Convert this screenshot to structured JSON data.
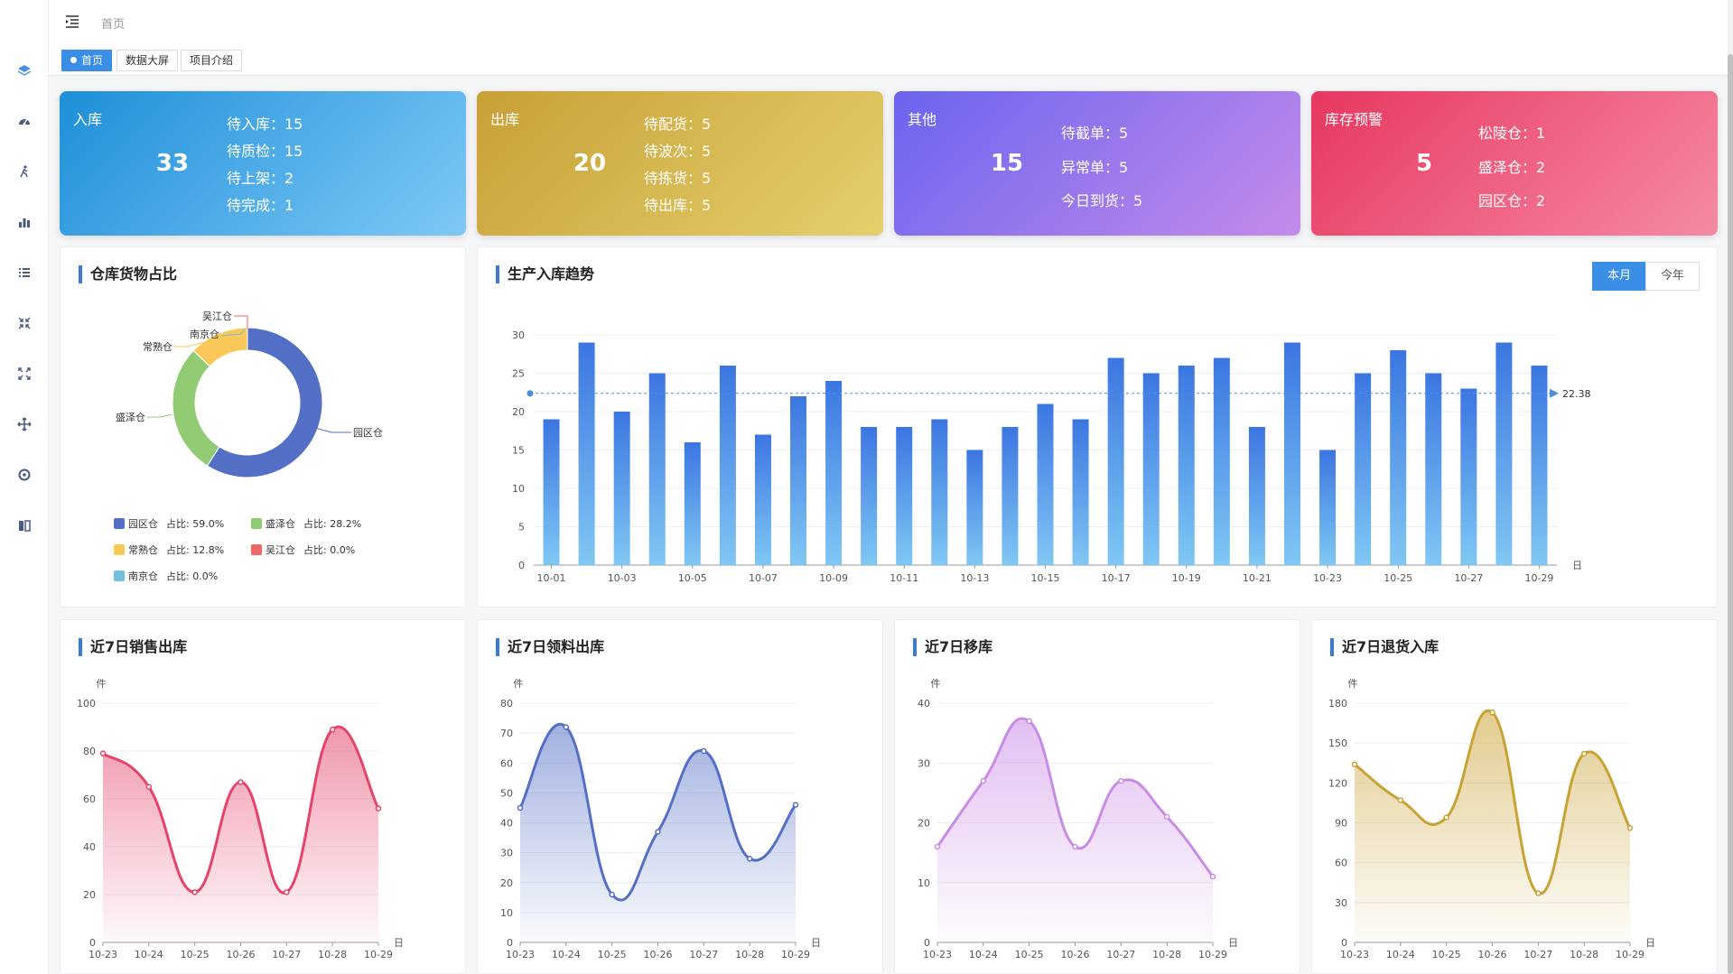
{
  "header": {
    "breadcrumb": "首页"
  },
  "tags": [
    {
      "label": "首页",
      "active": true
    },
    {
      "label": "数据大屏",
      "active": false
    },
    {
      "label": "项目介绍",
      "active": false
    }
  ],
  "sidebar": {
    "icons": [
      "layers-icon",
      "dashboard-icon",
      "person-walking-icon",
      "bar-chart-icon",
      "list-icon",
      "compress-icon",
      "expand-icon",
      "move-icon",
      "target-icon",
      "book-icon"
    ]
  },
  "cards": {
    "inbound": {
      "title": "入库",
      "total": "33",
      "items": [
        "待入库：15",
        "待质检：15",
        "待上架：2",
        "待完成：1"
      ]
    },
    "outbound": {
      "title": "出库",
      "total": "20",
      "items": [
        "待配货：5",
        "待波次：5",
        "待拣货：5",
        "待出库：5"
      ]
    },
    "other": {
      "title": "其他",
      "total": "15",
      "items": [
        "待截单：5",
        "异常单：5",
        "今日到货：5"
      ]
    },
    "warning": {
      "title": "库存预警",
      "total": "5",
      "items": [
        "松陵仓：1",
        "盛泽仓：2",
        "园区仓：2"
      ]
    }
  },
  "colors": {
    "accent": "#3a8ee6",
    "pie": [
      "#5470c6",
      "#91cc75",
      "#fac858",
      "#ee6666",
      "#73c0de"
    ]
  },
  "panels": {
    "pie_title": "仓库货物占比",
    "trend_title": "生产入库趋势",
    "trend_toggle": {
      "month": "本月",
      "year": "今年"
    },
    "sales_title": "近7日销售出库",
    "pick_title": "近7日领料出库",
    "move_title": "近7日移库",
    "return_title": "近7日退货入库"
  },
  "chart_data": [
    {
      "id": "pie",
      "type": "pie",
      "title": "仓库货物占比",
      "slices": [
        {
          "name": "园区仓",
          "value": 59.0,
          "legend": "占比:  59.0%"
        },
        {
          "name": "盛泽仓",
          "value": 28.2,
          "legend": "占比:  28.2%"
        },
        {
          "name": "常熟仓",
          "value": 12.8,
          "legend": "占比:  12.8%"
        },
        {
          "name": "吴江仓",
          "value": 0.0,
          "legend": "占比:  0.0%"
        },
        {
          "name": "南京仓",
          "value": 0.0,
          "legend": "占比:  0.0%"
        }
      ]
    },
    {
      "id": "trend",
      "type": "bar",
      "title": "生产入库趋势",
      "xunit": "日",
      "categories": [
        "10-01",
        "10-02",
        "10-03",
        "10-04",
        "10-05",
        "10-06",
        "10-07",
        "10-08",
        "10-09",
        "10-10",
        "10-11",
        "10-12",
        "10-13",
        "10-14",
        "10-15",
        "10-16",
        "10-17",
        "10-18",
        "10-19",
        "10-20",
        "10-21",
        "10-22",
        "10-23",
        "10-24",
        "10-25",
        "10-26",
        "10-27",
        "10-28",
        "10-29"
      ],
      "xtick_labels": [
        "10-01",
        "10-03",
        "10-05",
        "10-07",
        "10-09",
        "10-11",
        "10-13",
        "10-15",
        "10-17",
        "10-19",
        "10-21",
        "10-23",
        "10-25",
        "10-27",
        "10-29"
      ],
      "values": [
        19,
        29,
        20,
        25,
        16,
        26,
        17,
        22,
        24,
        18,
        18,
        19,
        15,
        18,
        21,
        19,
        27,
        25,
        26,
        27,
        18,
        29,
        15,
        25,
        28,
        25,
        23,
        29,
        26
      ],
      "ylim": [
        0,
        30
      ],
      "yticks": [
        0,
        5,
        10,
        15,
        20,
        25,
        30
      ],
      "average": 22.38,
      "average_label": "22.38"
    },
    {
      "id": "sales",
      "type": "area",
      "title": "近7日销售出库",
      "yunit": "件",
      "xunit": "日",
      "categories": [
        "10-23",
        "10-24",
        "10-25",
        "10-26",
        "10-27",
        "10-28",
        "10-29"
      ],
      "values": [
        79,
        65,
        21,
        67,
        21,
        89,
        56
      ],
      "ylim": [
        0,
        100
      ],
      "yticks": [
        0,
        20,
        40,
        60,
        80,
        100
      ],
      "color": "#e5436a"
    },
    {
      "id": "pick",
      "type": "area",
      "title": "近7日领料出库",
      "yunit": "件",
      "xunit": "日",
      "categories": [
        "10-23",
        "10-24",
        "10-25",
        "10-26",
        "10-27",
        "10-28",
        "10-29"
      ],
      "values": [
        45,
        72,
        16,
        37,
        64,
        28,
        46
      ],
      "ylim": [
        0,
        80
      ],
      "yticks": [
        0,
        10,
        20,
        30,
        40,
        50,
        60,
        70,
        80
      ],
      "color": "#5470c6"
    },
    {
      "id": "move",
      "type": "area",
      "title": "近7日移库",
      "yunit": "件",
      "xunit": "日",
      "categories": [
        "10-23",
        "10-24",
        "10-25",
        "10-26",
        "10-27",
        "10-28",
        "10-29"
      ],
      "values": [
        16,
        27,
        37,
        16,
        27,
        21,
        11
      ],
      "ylim": [
        0,
        40
      ],
      "yticks": [
        0,
        10,
        20,
        30,
        40
      ],
      "color": "#c98be6"
    },
    {
      "id": "return",
      "type": "area",
      "title": "近7日退货入库",
      "yunit": "件",
      "xunit": "日",
      "categories": [
        "10-23",
        "10-24",
        "10-25",
        "10-26",
        "10-27",
        "10-28",
        "10-29"
      ],
      "values": [
        134,
        107,
        94,
        173,
        37,
        142,
        86
      ],
      "ylim": [
        0,
        180
      ],
      "yticks": [
        0,
        30,
        60,
        90,
        120,
        150,
        180
      ],
      "color": "#c9a233"
    }
  ]
}
